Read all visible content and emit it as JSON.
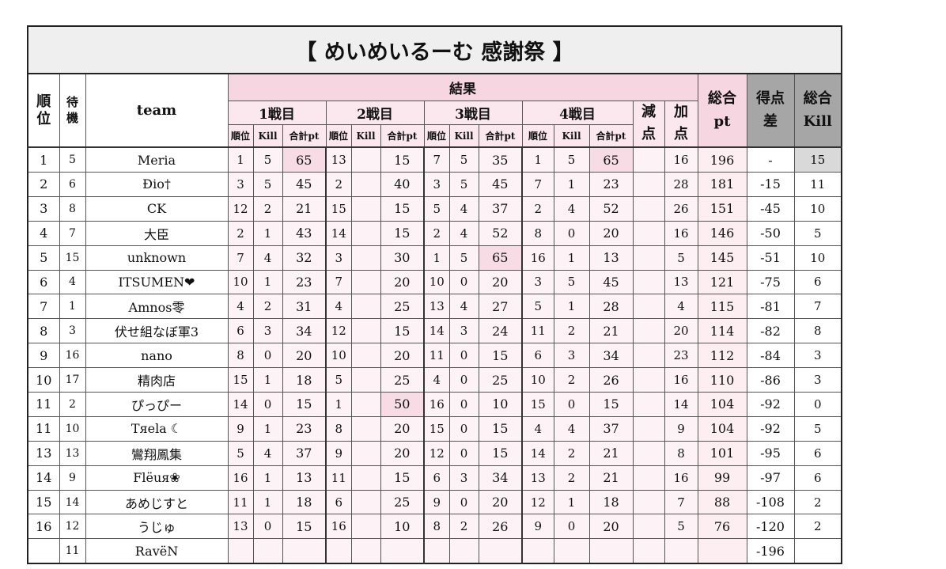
{
  "title": "【 めいめいるーむ 感謝祭 】",
  "headers": {
    "rank": "順位",
    "wait": "待機",
    "team": "team",
    "results": "結果",
    "games": [
      "1戦目",
      "2戦目",
      "3戦目",
      "4戦目"
    ],
    "sub_rank": "順位",
    "sub_kill": "Kill",
    "sub_pt": "合計pt",
    "minus": "減点",
    "plus": "加点",
    "total_pt": "総合pt",
    "diff": "得点差",
    "total_kill": "総合Kill"
  },
  "rows": [
    {
      "rank": "1",
      "wait": "5",
      "team": "Meria",
      "g": [
        [
          "1",
          "5",
          "65"
        ],
        [
          "13",
          "",
          "15"
        ],
        [
          "7",
          "5",
          "35"
        ],
        [
          "1",
          "5",
          "65"
        ]
      ],
      "minus": "",
      "plus": "16",
      "total": "196",
      "diff": "-",
      "kill": "15",
      "hl": [
        0,
        3
      ],
      "killhl": true
    },
    {
      "rank": "2",
      "wait": "6",
      "team": "Đio†",
      "g": [
        [
          "3",
          "5",
          "45"
        ],
        [
          "2",
          "",
          "40"
        ],
        [
          "3",
          "5",
          "45"
        ],
        [
          "7",
          "1",
          "23"
        ]
      ],
      "minus": "",
      "plus": "28",
      "total": "181",
      "diff": "-15",
      "kill": "11",
      "hl": []
    },
    {
      "rank": "3",
      "wait": "8",
      "team": "CK",
      "g": [
        [
          "12",
          "2",
          "21"
        ],
        [
          "15",
          "",
          "15"
        ],
        [
          "5",
          "4",
          "37"
        ],
        [
          "2",
          "4",
          "52"
        ]
      ],
      "minus": "",
      "plus": "26",
      "total": "151",
      "diff": "-45",
      "kill": "10",
      "hl": []
    },
    {
      "rank": "4",
      "wait": "7",
      "team": "大臣",
      "g": [
        [
          "2",
          "1",
          "43"
        ],
        [
          "14",
          "",
          "15"
        ],
        [
          "2",
          "4",
          "52"
        ],
        [
          "8",
          "0",
          "20"
        ]
      ],
      "minus": "",
      "plus": "16",
      "total": "146",
      "diff": "-50",
      "kill": "5",
      "hl": []
    },
    {
      "rank": "5",
      "wait": "15",
      "team": "unknown",
      "g": [
        [
          "7",
          "4",
          "32"
        ],
        [
          "3",
          "",
          "30"
        ],
        [
          "1",
          "5",
          "65"
        ],
        [
          "16",
          "1",
          "13"
        ]
      ],
      "minus": "",
      "plus": "5",
      "total": "145",
      "diff": "-51",
      "kill": "10",
      "hl": [
        2
      ]
    },
    {
      "rank": "6",
      "wait": "4",
      "team": "ITSUMEN❤",
      "g": [
        [
          "10",
          "1",
          "23"
        ],
        [
          "7",
          "",
          "20"
        ],
        [
          "10",
          "0",
          "20"
        ],
        [
          "3",
          "5",
          "45"
        ]
      ],
      "minus": "",
      "plus": "13",
      "total": "121",
      "diff": "-75",
      "kill": "6",
      "hl": []
    },
    {
      "rank": "7",
      "wait": "1",
      "team": "Amnos零",
      "g": [
        [
          "4",
          "2",
          "31"
        ],
        [
          "4",
          "",
          "25"
        ],
        [
          "13",
          "4",
          "27"
        ],
        [
          "5",
          "1",
          "28"
        ]
      ],
      "minus": "",
      "plus": "4",
      "total": "115",
      "diff": "-81",
      "kill": "7",
      "hl": []
    },
    {
      "rank": "8",
      "wait": "3",
      "team": "伏せ組なぼ軍3",
      "g": [
        [
          "6",
          "3",
          "34"
        ],
        [
          "12",
          "",
          "15"
        ],
        [
          "14",
          "3",
          "24"
        ],
        [
          "11",
          "2",
          "21"
        ]
      ],
      "minus": "",
      "plus": "20",
      "total": "114",
      "diff": "-82",
      "kill": "8",
      "hl": []
    },
    {
      "rank": "9",
      "wait": "16",
      "team": "nano",
      "g": [
        [
          "8",
          "0",
          "20"
        ],
        [
          "10",
          "",
          "20"
        ],
        [
          "11",
          "0",
          "15"
        ],
        [
          "6",
          "3",
          "34"
        ]
      ],
      "minus": "",
      "plus": "23",
      "total": "112",
      "diff": "-84",
      "kill": "3",
      "hl": []
    },
    {
      "rank": "10",
      "wait": "17",
      "team": "精肉店",
      "g": [
        [
          "15",
          "1",
          "18"
        ],
        [
          "5",
          "",
          "25"
        ],
        [
          "4",
          "0",
          "25"
        ],
        [
          "10",
          "2",
          "26"
        ]
      ],
      "minus": "",
      "plus": "16",
      "total": "110",
      "diff": "-86",
      "kill": "3",
      "hl": []
    },
    {
      "rank": "11",
      "wait": "2",
      "team": "ぴっぴー",
      "g": [
        [
          "14",
          "0",
          "15"
        ],
        [
          "1",
          "",
          "50"
        ],
        [
          "16",
          "0",
          "10"
        ],
        [
          "15",
          "0",
          "15"
        ]
      ],
      "minus": "",
      "plus": "14",
      "total": "104",
      "diff": "-92",
      "kill": "0",
      "hl": [
        1
      ]
    },
    {
      "rank": "11",
      "wait": "10",
      "team": "Tяela ☾",
      "g": [
        [
          "9",
          "1",
          "23"
        ],
        [
          "8",
          "",
          "20"
        ],
        [
          "15",
          "0",
          "15"
        ],
        [
          "4",
          "4",
          "37"
        ]
      ],
      "minus": "",
      "plus": "9",
      "total": "104",
      "diff": "-92",
      "kill": "5",
      "hl": []
    },
    {
      "rank": "13",
      "wait": "13",
      "team": "鸞翔鳳集",
      "g": [
        [
          "5",
          "4",
          "37"
        ],
        [
          "9",
          "",
          "20"
        ],
        [
          "12",
          "0",
          "15"
        ],
        [
          "14",
          "2",
          "21"
        ]
      ],
      "minus": "",
      "plus": "8",
      "total": "101",
      "diff": "-95",
      "kill": "6",
      "hl": []
    },
    {
      "rank": "14",
      "wait": "9",
      "team": "Flëuя❀",
      "g": [
        [
          "16",
          "1",
          "13"
        ],
        [
          "11",
          "",
          "15"
        ],
        [
          "6",
          "3",
          "34"
        ],
        [
          "13",
          "2",
          "21"
        ]
      ],
      "minus": "",
      "plus": "16",
      "total": "99",
      "diff": "-97",
      "kill": "6",
      "hl": []
    },
    {
      "rank": "15",
      "wait": "14",
      "team": "あめじすと",
      "g": [
        [
          "11",
          "1",
          "18"
        ],
        [
          "6",
          "",
          "25"
        ],
        [
          "9",
          "0",
          "20"
        ],
        [
          "12",
          "1",
          "18"
        ]
      ],
      "minus": "",
      "plus": "7",
      "total": "88",
      "diff": "-108",
      "kill": "2",
      "hl": []
    },
    {
      "rank": "16",
      "wait": "12",
      "team": "うじゅ",
      "g": [
        [
          "13",
          "0",
          "15"
        ],
        [
          "16",
          "",
          "10"
        ],
        [
          "8",
          "2",
          "26"
        ],
        [
          "9",
          "0",
          "20"
        ]
      ],
      "minus": "",
      "plus": "5",
      "total": "76",
      "diff": "-120",
      "kill": "2",
      "hl": []
    },
    {
      "rank": "",
      "wait": "11",
      "team": "RavëN",
      "g": [
        [
          "",
          "",
          ""
        ],
        [
          "",
          "",
          ""
        ],
        [
          "",
          "",
          ""
        ],
        [
          "",
          "",
          ""
        ]
      ],
      "minus": "",
      "plus": "",
      "total": "",
      "diff": "-196",
      "kill": "",
      "hl": []
    }
  ],
  "colors": {
    "header_pink": "#f6d6e0",
    "highlight": "#f7dbe5",
    "gray_header": "#a6a6a6"
  }
}
